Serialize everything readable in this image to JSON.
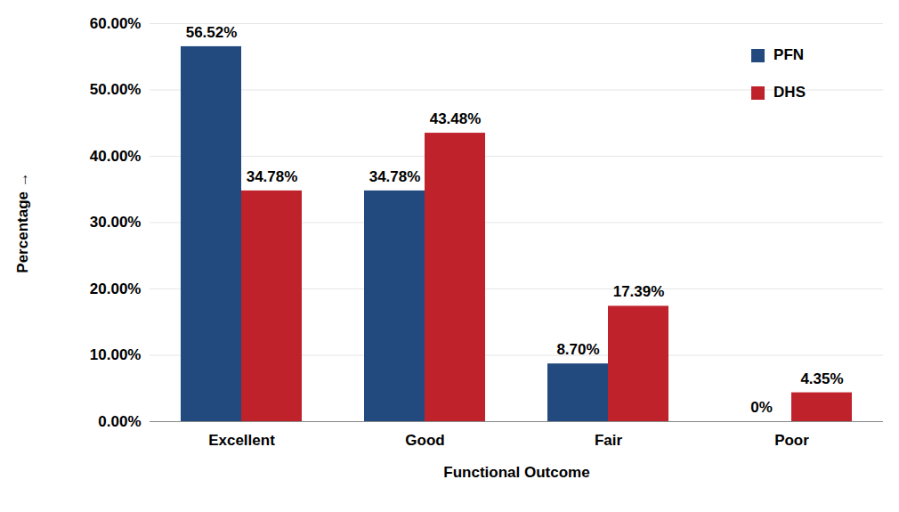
{
  "chart_data": {
    "type": "bar",
    "xlabel": "Functional Outcome",
    "ylabel": "Percentage",
    "categories": [
      "Excellent",
      "Good",
      "Fair",
      "Poor"
    ],
    "series": [
      {
        "name": "PFN",
        "color": "#234a7f",
        "values": [
          56.52,
          34.78,
          8.7,
          0
        ],
        "value_labels": [
          "56.52%",
          "34.78%",
          "8.70%",
          "0%"
        ]
      },
      {
        "name": "DHS",
        "color": "#c0222b",
        "values": [
          34.78,
          43.48,
          17.39,
          4.35
        ],
        "value_labels": [
          "34.78%",
          "43.48%",
          "17.39%",
          "4.35%"
        ]
      }
    ],
    "ylim": [
      0,
      60
    ],
    "yticks": [
      {
        "value": 0,
        "label": "0.00%"
      },
      {
        "value": 10,
        "label": "10.00%"
      },
      {
        "value": 20,
        "label": "20.00%"
      },
      {
        "value": 30,
        "label": "30.00%"
      },
      {
        "value": 40,
        "label": "40.00%"
      },
      {
        "value": 50,
        "label": "50.00%"
      },
      {
        "value": 60,
        "label": "60.00%"
      }
    ],
    "grid": true,
    "legend": "top-right",
    "data_labels": true
  }
}
